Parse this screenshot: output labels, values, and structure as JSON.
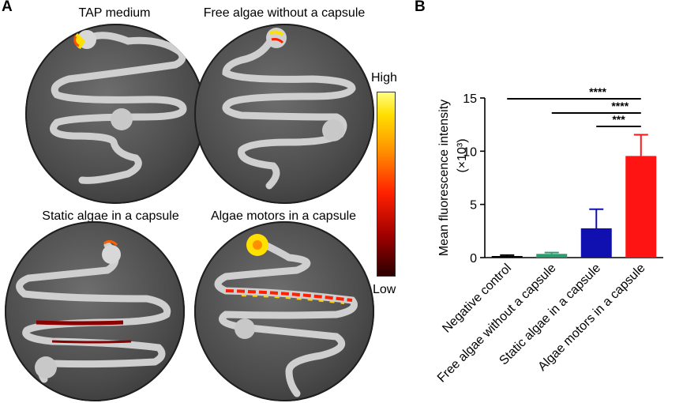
{
  "panel_a": {
    "letter": "A",
    "titles": [
      "TAP medium",
      "Free algae without a capsule",
      "Static algae in a capsule",
      "Algae motors in a capsule"
    ],
    "colorbar": {
      "high": "High",
      "low": "Low",
      "colors": [
        "#ffff80",
        "#ffe000",
        "#ff9000",
        "#ff2000",
        "#a00000",
        "#2a0000"
      ]
    }
  },
  "panel_b": {
    "letter": "B"
  },
  "chart_data": {
    "type": "bar",
    "categories": [
      "Negative control",
      "Free algae without a capsule",
      "Static algae in a capsule",
      "Algae motors in a capsule"
    ],
    "values": [
      0.15,
      0.35,
      2.75,
      9.55
    ],
    "errors": [
      0.08,
      0.12,
      1.8,
      2.0
    ],
    "colors": [
      "#000000",
      "#2a9d6e",
      "#1010b0",
      "#ff1414"
    ],
    "ylabel": "Mean fluorescence intensity",
    "ylabel_unit": "(×10³)",
    "ylim": [
      0,
      15
    ],
    "yticks": [
      "0",
      "5",
      "10",
      "15"
    ],
    "significance": [
      {
        "from": 0,
        "to": 3,
        "label": "****"
      },
      {
        "from": 1,
        "to": 3,
        "label": "****"
      },
      {
        "from": 2,
        "to": 3,
        "label": "***"
      }
    ]
  }
}
